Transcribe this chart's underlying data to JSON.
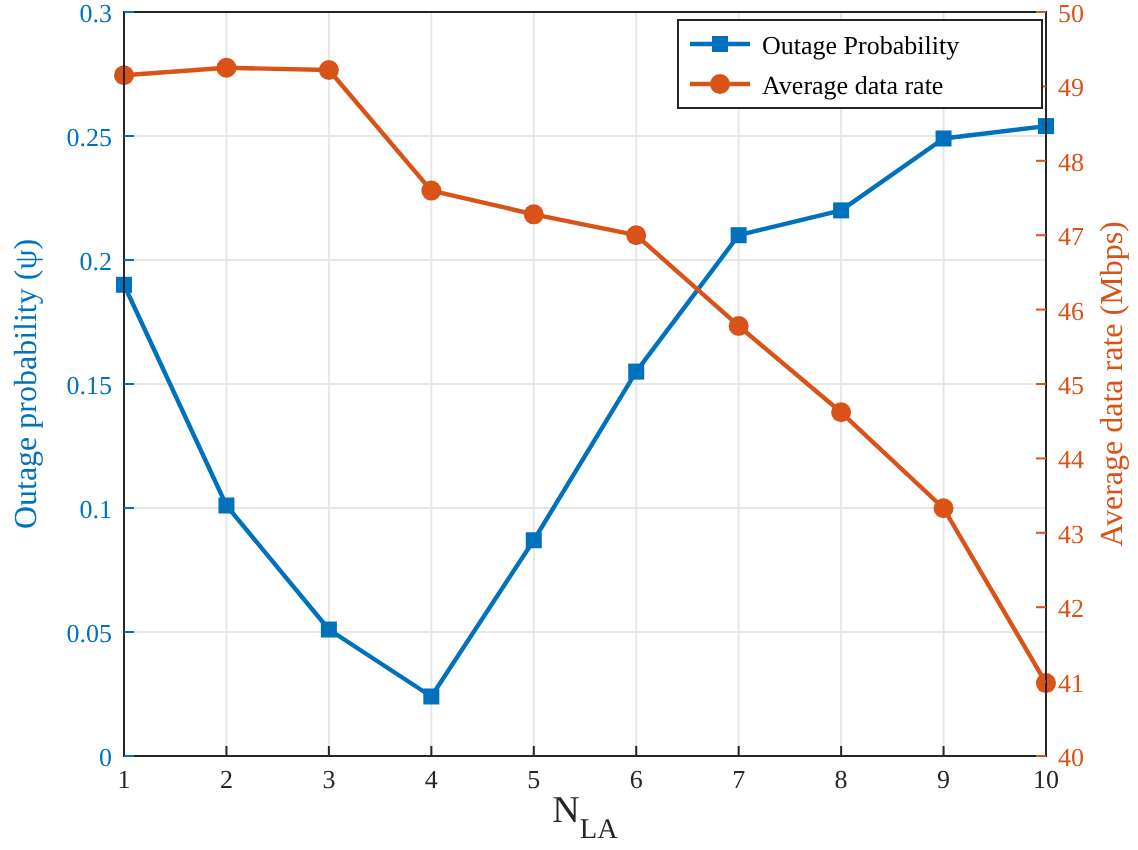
{
  "chart_data": {
    "type": "line",
    "xlabel": "N$_{LA}$",
    "ylabel": "Outage probability (ψ)",
    "y2label": "Average data rate (Mbps)",
    "x": [
      1,
      2,
      3,
      4,
      5,
      6,
      7,
      8,
      9,
      10
    ],
    "xlim": [
      1,
      10
    ],
    "xticks": [
      1,
      2,
      3,
      4,
      5,
      6,
      7,
      8,
      9,
      10
    ],
    "ylim": [
      0,
      0.3
    ],
    "yticks": [
      0,
      0.05,
      0.1,
      0.15,
      0.2,
      0.25,
      0.3
    ],
    "y2lim": [
      40,
      50
    ],
    "y2ticks": [
      40,
      41,
      42,
      43,
      44,
      45,
      46,
      47,
      48,
      49,
      50
    ],
    "grid": true,
    "legend": "top right",
    "series": [
      {
        "name": "Outage Probability",
        "color": "#0072bd",
        "marker": "square",
        "values": [
          0.19,
          0.101,
          0.051,
          0.024,
          0.087,
          0.155,
          0.21,
          0.22,
          0.249,
          0.254
        ]
      },
      {
        "name": "Average data rate",
        "color": "#d95319",
        "marker": "circle",
        "axis": "y2",
        "values": [
          49.15,
          49.25,
          49.22,
          47.6,
          47.28,
          47.0,
          45.78,
          44.62,
          43.33,
          40.98
        ]
      }
    ]
  }
}
